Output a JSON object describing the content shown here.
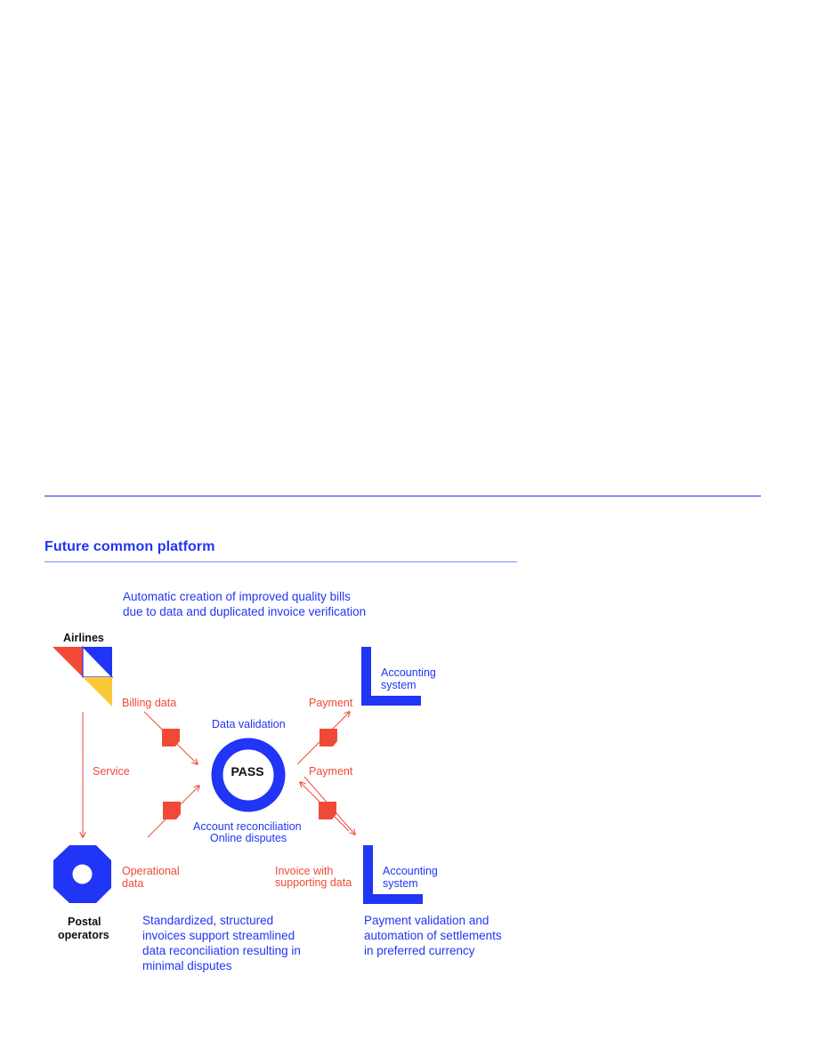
{
  "section": {
    "title": "Future common platform"
  },
  "notes": {
    "top": [
      "Automatic creation of improved quality bills",
      "due to data and duplicated invoice verification"
    ],
    "bottom_left": [
      "Standardized, structured",
      "invoices support streamlined",
      "data reconciliation resulting in",
      "minimal disputes"
    ],
    "bottom_right": [
      "Payment validation and",
      "automation of settlements",
      "in preferred currency"
    ]
  },
  "nodes": {
    "airlines": "Airlines",
    "postal": [
      "Postal",
      "operators"
    ],
    "pass": "PASS",
    "accounting_top": [
      "Accounting",
      "system"
    ],
    "accounting_bottom": [
      "Accounting",
      "system"
    ]
  },
  "labels": {
    "billing_data": "Billing data",
    "service": "Service",
    "operational_data": [
      "Operational",
      "data"
    ],
    "payment_top": "Payment",
    "payment_mid": "Payment",
    "invoice": [
      "Invoice with",
      "supporting data"
    ],
    "data_validation": "Data validation",
    "reconciliation": [
      "Account reconciliation",
      "Online disputes"
    ]
  },
  "colors": {
    "blue": "#2035f5",
    "red": "#f04a37",
    "yellow": "#f9c935"
  }
}
